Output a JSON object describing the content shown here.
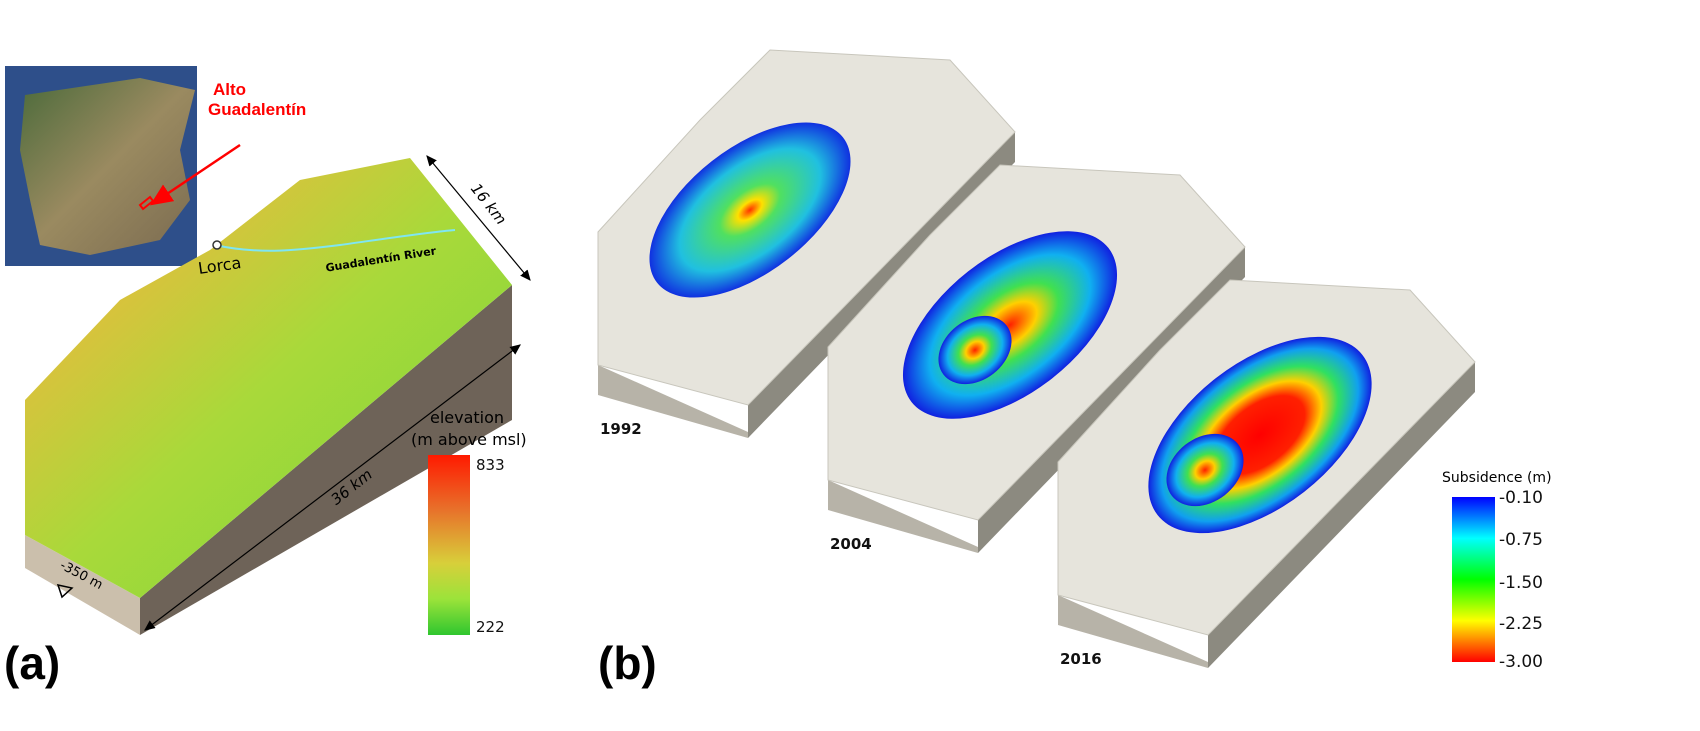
{
  "panel_a": {
    "label": "(a)",
    "inset_label": "Alto\nGuadalentín",
    "inset_label_line1": "Alto",
    "inset_label_line2": "Guadalentín",
    "town": "Lorca",
    "river": "Guadalentín River",
    "width_dim": "16 km",
    "length_dim": "36 km",
    "depth_dim": "-350 m",
    "legend": {
      "title_line1": "elevation",
      "title_line2": "(m above msl)",
      "max": "833",
      "min": "222",
      "colors": [
        "#ff1a00",
        "#e8702a",
        "#d8cf3a",
        "#9be33a",
        "#2fc62f"
      ]
    }
  },
  "panel_b": {
    "label": "(b)",
    "years": [
      "1992",
      "2004",
      "2016"
    ],
    "legend": {
      "title": "Subsidence (m)",
      "ticks": [
        "-0.10",
        "-0.75",
        "-1.50",
        "-2.25",
        "-3.00"
      ],
      "colors": [
        "#0000ff",
        "#00ffff",
        "#00ff00",
        "#ffff00",
        "#ff0000"
      ]
    }
  }
}
